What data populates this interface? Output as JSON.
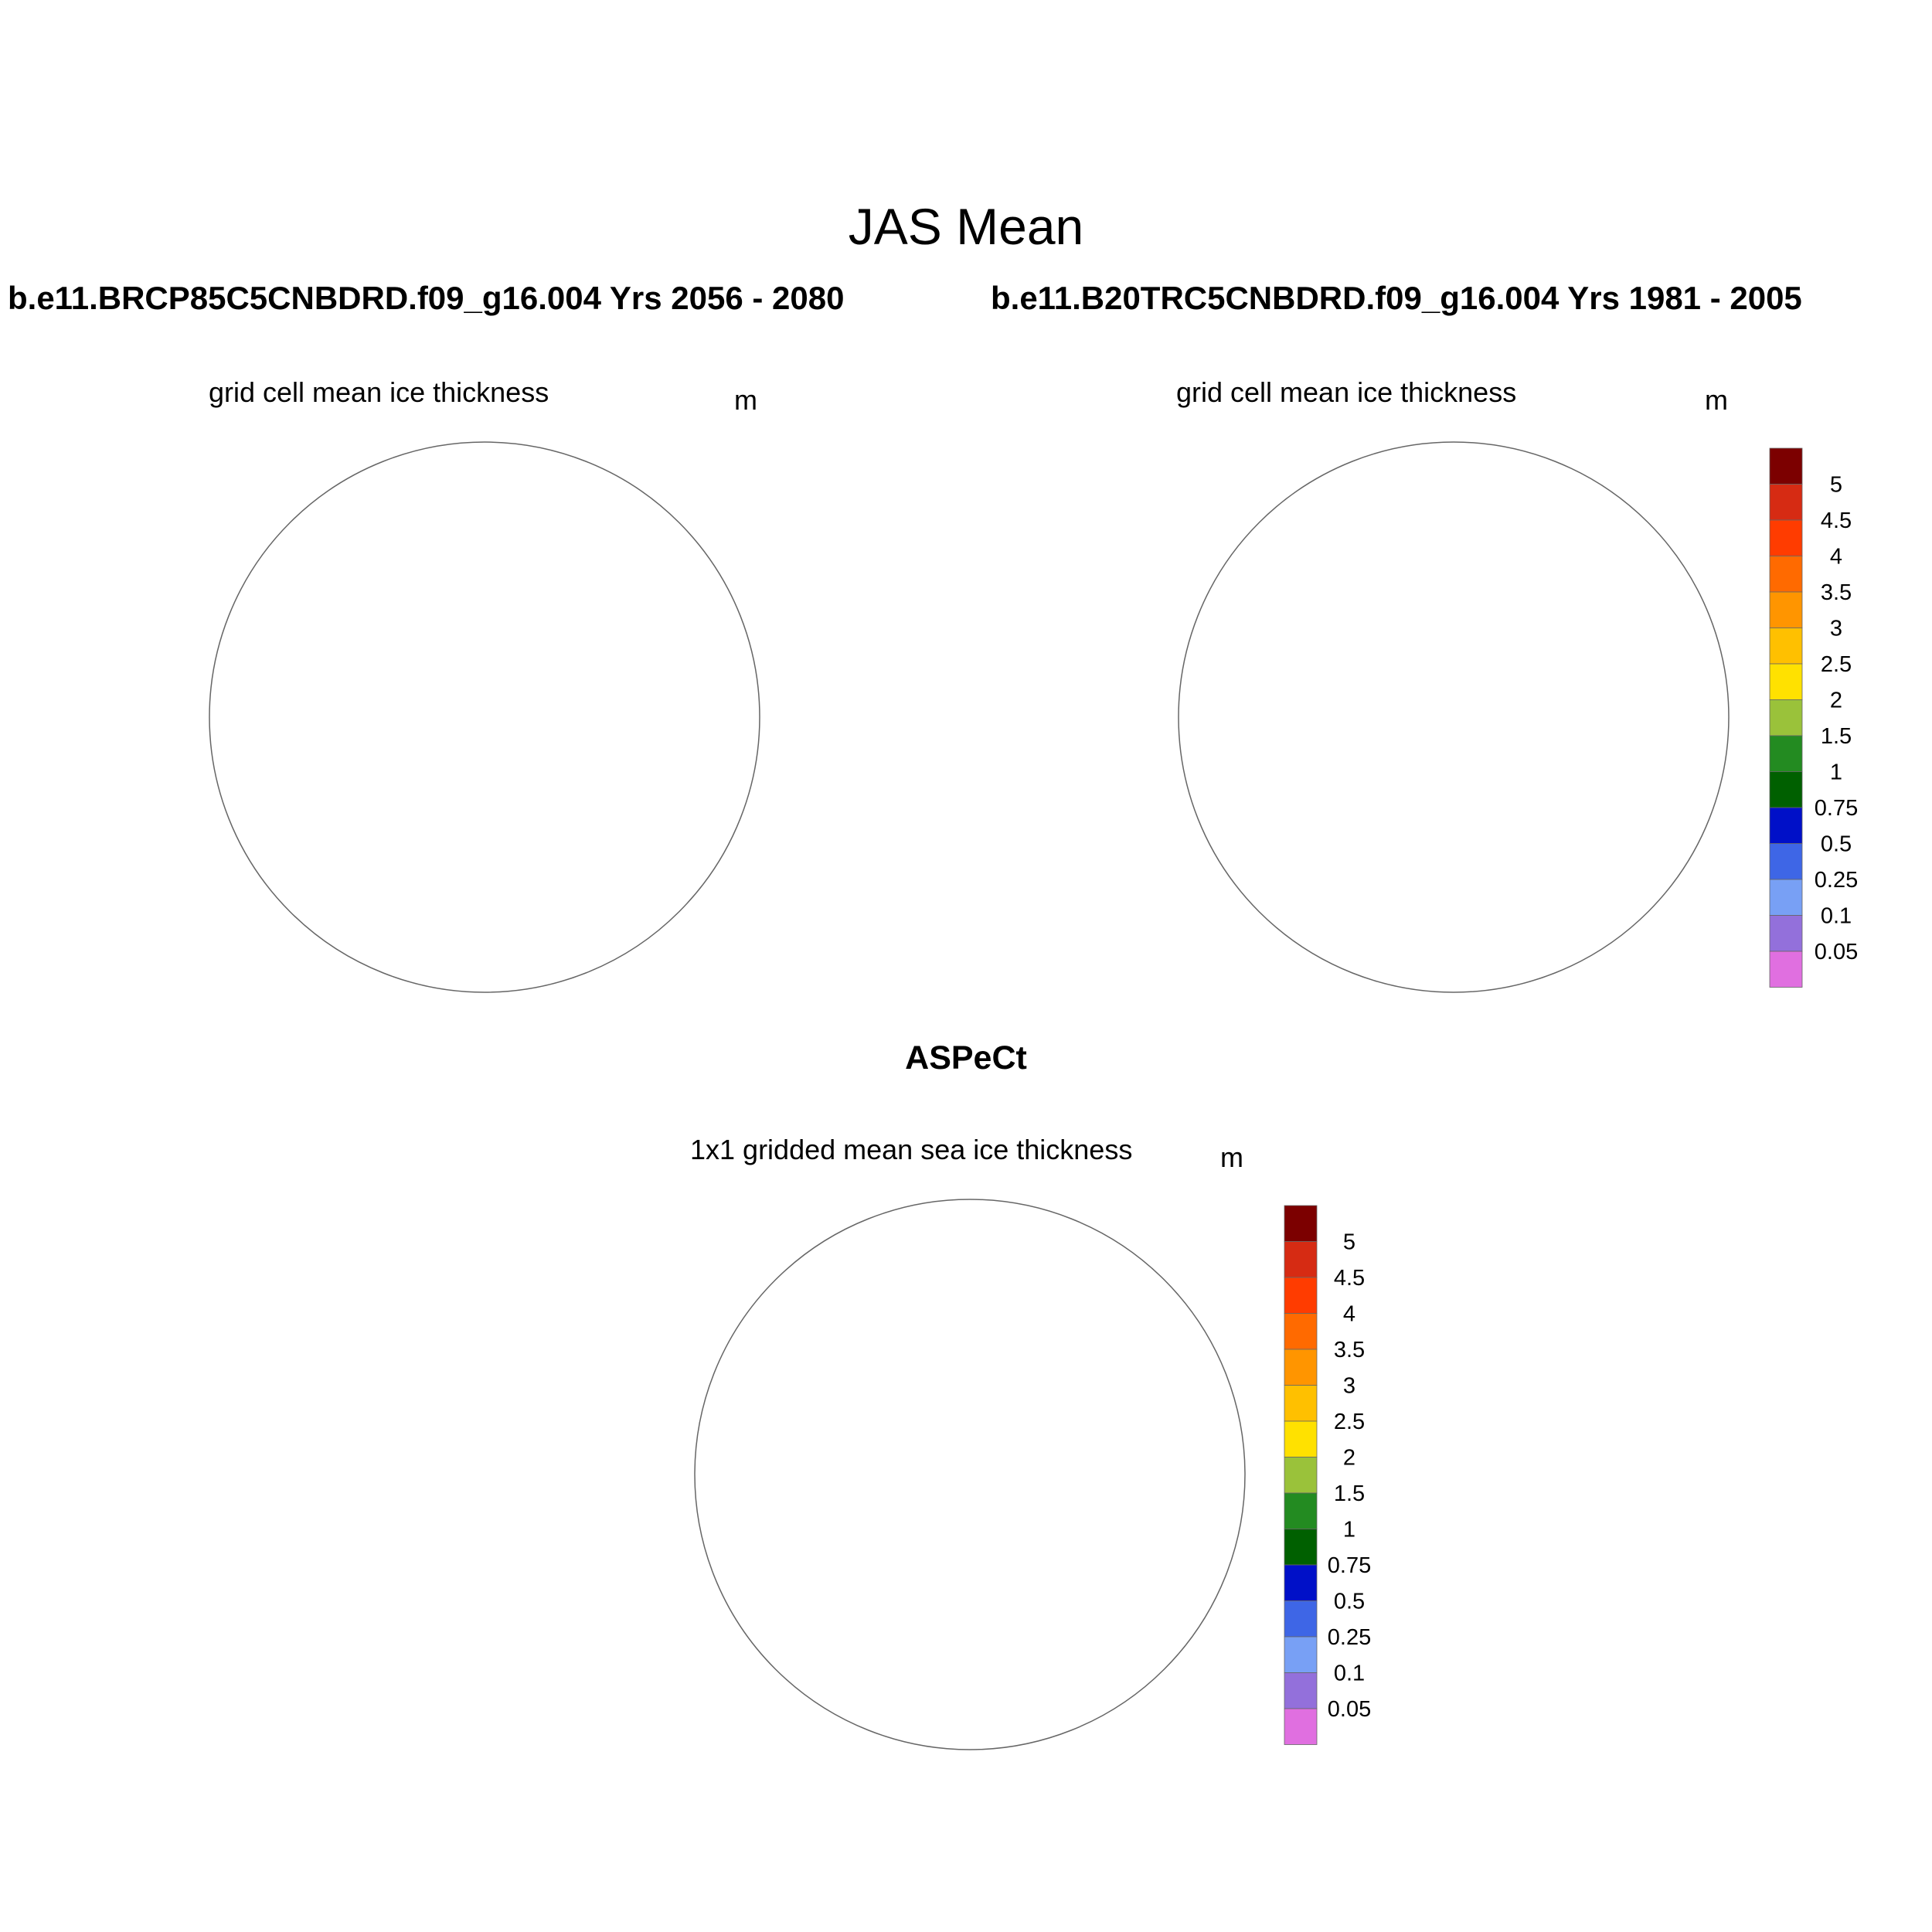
{
  "figure": {
    "title": "JAS Mean",
    "case_left": "b.e11.BRCP85C5CNBDRD.f09_g16.004  Yrs 2056 - 2080",
    "case_right": "b.e11.B20TRC5CNBDRD.f09_g16.004  Yrs 1981 - 2005",
    "obs_title": "ASPeCt"
  },
  "panels": [
    {
      "id": "model-future",
      "subtitle": "grid cell mean ice thickness",
      "units": "m"
    },
    {
      "id": "model-historical",
      "subtitle": "grid cell mean ice thickness",
      "units": "m"
    },
    {
      "id": "aspect-obs",
      "subtitle": "1x1 gridded mean sea ice thickness",
      "units": "m"
    }
  ],
  "colorbar": {
    "labels": [
      "5",
      "4.5",
      "4",
      "3.5",
      "3",
      "2.5",
      "2",
      "1.5",
      "1",
      "0.75",
      "0.5",
      "0.25",
      "0.1",
      "0.05"
    ],
    "colors": [
      "#7c0000",
      "#d62b13",
      "#ff3c00",
      "#ff6a00",
      "#ff9500",
      "#ffc000",
      "#ffe100",
      "#9ac23a",
      "#238b21",
      "#006000",
      "#0010c8",
      "#3e66e6",
      "#78a0f5",
      "#9370db",
      "#e06fe0"
    ]
  },
  "map_colors": {
    "land": "#c0c0c0",
    "ocean": "#ffffff",
    "grid": "#888888"
  }
}
